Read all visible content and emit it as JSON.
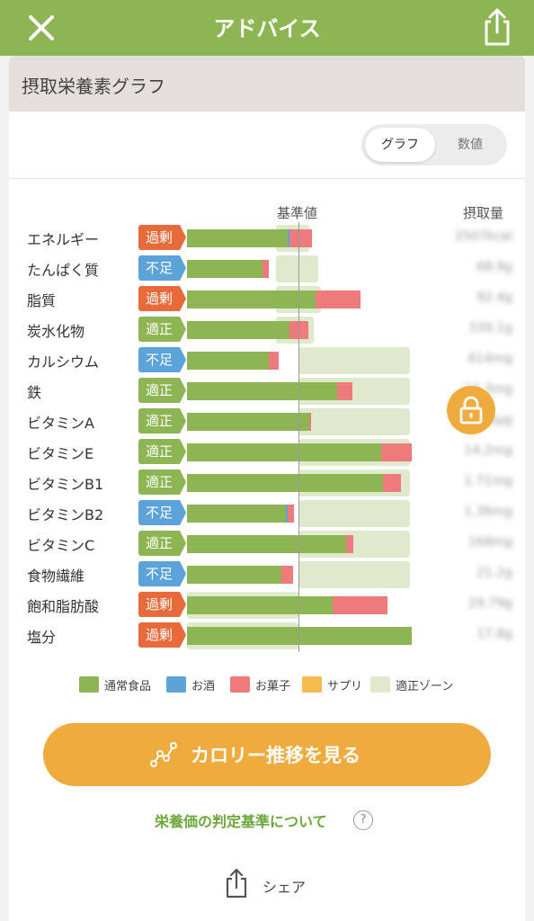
{
  "header": {
    "title": "アドバイス",
    "close_icon": "close-icon",
    "share_icon": "share-icon"
  },
  "card": {
    "title": "摂取栄養素グラフ"
  },
  "toggle": {
    "graph": "グラフ",
    "numeric": "数値",
    "selected": "グラフ"
  },
  "columns": {
    "baseline": "基準値",
    "intake": "摂取量"
  },
  "colors": {
    "normal_food": "#8db553",
    "alcohol": "#5ba3d8",
    "snacks": "#ee7b7b",
    "supplements": "#f4bb4e",
    "appropriate_zone": "#dfeacc",
    "status_over": "#e8693a",
    "status_short": "#5ba3d8",
    "status_ok": "#8db553",
    "accent": "#f0ab3f"
  },
  "nutrients": [
    {
      "name": "エネルギー",
      "status": "過剰",
      "status_type": "over",
      "zone": [
        0.8,
        1.1
      ],
      "normal": 0.9,
      "alcohol": 0.02,
      "snacks": 0.2,
      "intake": "2507kcal"
    },
    {
      "name": "たんぱく質",
      "status": "不足",
      "status_type": "short",
      "zone": [
        0.8,
        1.18
      ],
      "normal": 0.68,
      "alcohol": 0,
      "snacks": 0.05,
      "intake": "68.9g"
    },
    {
      "name": "脂質",
      "status": "過剰",
      "status_type": "over",
      "zone": [
        0.8,
        1.2
      ],
      "normal": 1.15,
      "alcohol": 0,
      "snacks": 0.41,
      "intake": "92.4g"
    },
    {
      "name": "炭水化物",
      "status": "適正",
      "status_type": "ok",
      "zone": [
        0.8,
        1.14
      ],
      "normal": 0.92,
      "alcohol": 0,
      "snacks": 0.17,
      "intake": "339.1g"
    },
    {
      "name": "カルシウム",
      "status": "不足",
      "status_type": "short",
      "zone": [
        1.0,
        2.0
      ],
      "normal": 0.73,
      "alcohol": 0,
      "snacks": 0.09,
      "intake": "614mg"
    },
    {
      "name": "鉄",
      "status": "適正",
      "status_type": "ok",
      "zone": [
        1.0,
        2.0
      ],
      "normal": 1.35,
      "alcohol": 0,
      "snacks": 0.13,
      "intake": "10.3mg"
    },
    {
      "name": "ビタミンA",
      "status": "適正",
      "status_type": "ok",
      "zone": [
        1.0,
        2.0
      ],
      "normal": 1.1,
      "alcohol": 0,
      "snacks": 0.01,
      "intake": "820μg"
    },
    {
      "name": "ビタミンE",
      "status": "適正",
      "status_type": "ok",
      "zone": [
        1.0,
        2.0
      ],
      "normal": 1.74,
      "alcohol": 0,
      "snacks": 0.28,
      "intake": "14.2mg"
    },
    {
      "name": "ビタミンB1",
      "status": "適正",
      "status_type": "ok",
      "zone": [
        1.0,
        2.0
      ],
      "normal": 1.76,
      "alcohol": 0,
      "snacks": 0.16,
      "intake": "1.71mg"
    },
    {
      "name": "ビタミンB2",
      "status": "不足",
      "status_type": "short",
      "zone": [
        1.0,
        2.0
      ],
      "normal": 0.89,
      "alcohol": 0.01,
      "snacks": 0.06,
      "intake": "1.36mg"
    },
    {
      "name": "ビタミンC",
      "status": "適正",
      "status_type": "ok",
      "zone": [
        1.0,
        2.0
      ],
      "normal": 1.43,
      "alcohol": 0,
      "snacks": 0.06,
      "intake": "168mg"
    },
    {
      "name": "食物繊維",
      "status": "不足",
      "status_type": "short",
      "zone": [
        1.0,
        2.0
      ],
      "normal": 0.85,
      "alcohol": 0,
      "snacks": 0.1,
      "intake": "21.2g"
    },
    {
      "name": "飽和脂肪酸",
      "status": "過剰",
      "status_type": "over",
      "zone": [
        0,
        1.0
      ],
      "normal": 1.31,
      "alcohol": 0,
      "snacks": 0.49,
      "intake": "29.79g"
    },
    {
      "name": "塩分",
      "status": "過剰",
      "status_type": "over",
      "zone": [
        0,
        1.0
      ],
      "normal": 2.02,
      "alcohol": 0,
      "snacks": 0,
      "intake": "17.8g"
    }
  ],
  "legend": [
    {
      "label": "通常食品",
      "color": "#8db553"
    },
    {
      "label": "お酒",
      "color": "#5ba3d8"
    },
    {
      "label": "お菓子",
      "color": "#ee7b7b"
    },
    {
      "label": "サプリ",
      "color": "#f4bb4e"
    },
    {
      "label": "適正ゾーン",
      "color": "#dfeacc"
    }
  ],
  "lock_icon": "lock-icon",
  "calorie_button": {
    "label": "カロリー推移を見る",
    "icon": "trend-chart-icon"
  },
  "criteria_link": {
    "label": "栄養価の判定基準について",
    "icon": "question-icon",
    "icon_glyph": "?"
  },
  "share_button": {
    "label": "シェア",
    "icon": "share-icon"
  }
}
